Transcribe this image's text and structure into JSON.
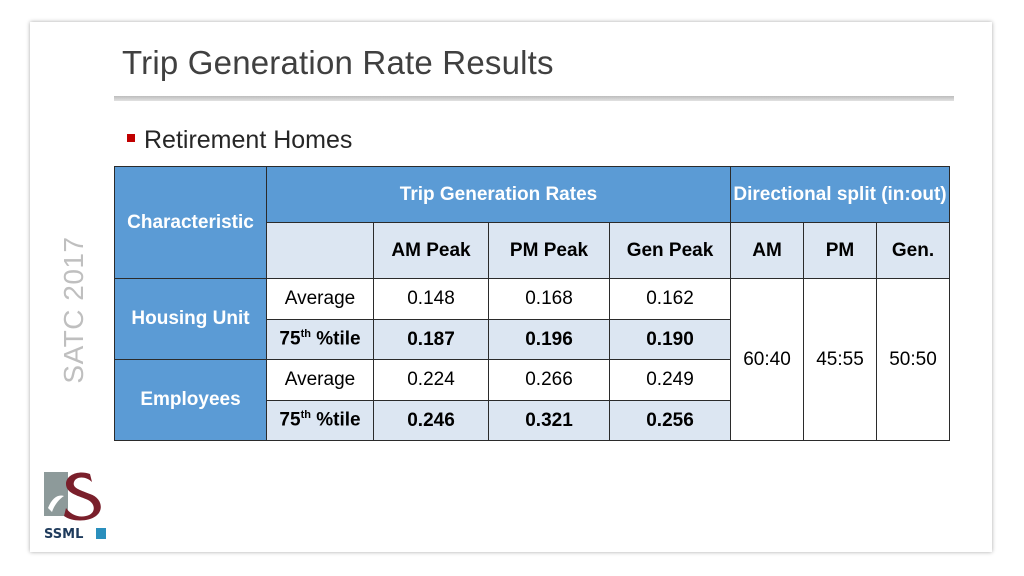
{
  "slide": {
    "title": "Trip Generation Rate Results",
    "bullet": "Retirement Homes",
    "side_text": "SATC 2017",
    "logo_text": "SSML",
    "colors": {
      "header": "#5b9bd5",
      "alt_row": "#dce6f2",
      "bullet": "#c00000"
    }
  },
  "table": {
    "characteristic_header": "Characteristic",
    "group_header_rates": "Trip Generation Rates",
    "group_header_split": "Directional split (in:out)",
    "rate_columns": [
      "AM Peak",
      "PM Peak",
      "Gen Peak"
    ],
    "split_columns": [
      "AM",
      "PM",
      "Gen."
    ],
    "rows": [
      {
        "characteristic": "Housing Unit",
        "stats": [
          {
            "label": "Average",
            "values": [
              "0.148",
              "0.168",
              "0.162"
            ]
          },
          {
            "label_base": "75",
            "label_sup": "th",
            "label_rest": " %tile",
            "values": [
              "0.187",
              "0.196",
              "0.190"
            ]
          }
        ]
      },
      {
        "characteristic": "Employees",
        "stats": [
          {
            "label": "Average",
            "values": [
              "0.224",
              "0.266",
              "0.249"
            ]
          },
          {
            "label_base": "75",
            "label_sup": "th",
            "label_rest": " %tile",
            "values": [
              "0.246",
              "0.321",
              "0.256"
            ]
          }
        ]
      }
    ],
    "split_values": [
      "60:40",
      "45:55",
      "50:50"
    ]
  }
}
